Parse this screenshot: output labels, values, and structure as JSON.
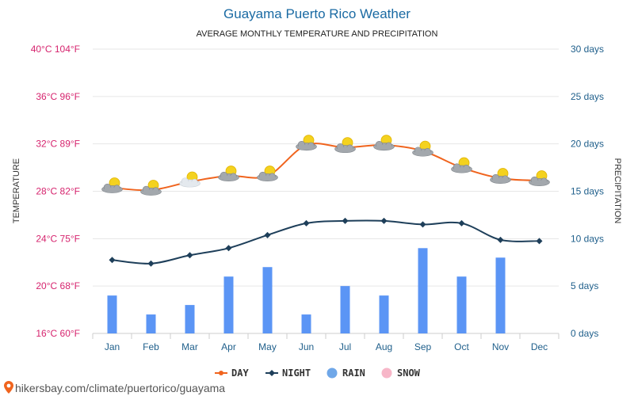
{
  "chart_data": {
    "type": "line",
    "title": "Guayama Puerto Rico Weather",
    "subtitle": "AVERAGE MONTHLY TEMPERATURE AND PRECIPITATION",
    "ylabel_left": "TEMPERATURE",
    "ylabel_right": "PRECIPITATION",
    "categories": [
      "Jan",
      "Feb",
      "Mar",
      "Apr",
      "May",
      "Jun",
      "Jul",
      "Aug",
      "Sep",
      "Oct",
      "Nov",
      "Dec"
    ],
    "left_ticks": [
      {
        "value": 16,
        "label": "16°C 60°F"
      },
      {
        "value": 20,
        "label": "20°C 68°F"
      },
      {
        "value": 24,
        "label": "24°C 75°F"
      },
      {
        "value": 28,
        "label": "28°C 82°F"
      },
      {
        "value": 32,
        "label": "32°C 89°F"
      },
      {
        "value": 36,
        "label": "36°C 96°F"
      },
      {
        "value": 40,
        "label": "40°C 104°F"
      }
    ],
    "right_ticks": [
      {
        "value": 0,
        "label": "0 days"
      },
      {
        "value": 5,
        "label": "5 days"
      },
      {
        "value": 10,
        "label": "10 days"
      },
      {
        "value": 15,
        "label": "15 days"
      },
      {
        "value": 20,
        "label": "20 days"
      },
      {
        "value": 25,
        "label": "25 days"
      },
      {
        "value": 30,
        "label": "30 days"
      }
    ],
    "ylim_left": [
      16,
      40
    ],
    "ylim_right": [
      0,
      30
    ],
    "series": [
      {
        "name": "DAY",
        "type": "line",
        "axis": "left",
        "color": "#f0641e",
        "values": [
          28.3,
          28.1,
          28.8,
          29.3,
          29.3,
          31.9,
          31.7,
          31.9,
          31.4,
          30.0,
          29.1,
          28.9
        ]
      },
      {
        "name": "NIGHT",
        "type": "line",
        "axis": "left",
        "color": "#1e3f5a",
        "values": [
          22.2,
          21.9,
          22.6,
          23.2,
          24.3,
          25.3,
          25.5,
          25.5,
          25.2,
          25.3,
          23.9,
          23.8
        ]
      },
      {
        "name": "RAIN",
        "type": "bar",
        "axis": "right",
        "color": "#5b95f5",
        "values": [
          4,
          2,
          3,
          6,
          7,
          2,
          5,
          4,
          9,
          6,
          8,
          0
        ]
      },
      {
        "name": "SNOW",
        "type": "bar",
        "axis": "right",
        "color": "#f7b6c8",
        "values": [
          0,
          0,
          0,
          0,
          0,
          0,
          0,
          0,
          0,
          0,
          0,
          0
        ]
      }
    ],
    "icons": [
      "partly-cloudy-icon",
      "partly-cloudy-icon",
      "partly-sunny-cloud-icon",
      "partly-cloudy-icon",
      "partly-cloudy-icon",
      "partly-cloudy-icon",
      "partly-cloudy-icon",
      "partly-cloudy-icon",
      "partly-cloudy-icon",
      "partly-cloudy-icon",
      "partly-cloudy-icon",
      "partly-cloudy-icon"
    ],
    "legend_position": "bottom-center",
    "grid": true
  },
  "legend": [
    {
      "label": "DAY",
      "marker": "line-dot",
      "color": "#f0641e"
    },
    {
      "label": "NIGHT",
      "marker": "line-diamond",
      "color": "#1e3f5a"
    },
    {
      "label": "RAIN",
      "marker": "circle",
      "color": "#6fa7e8"
    },
    {
      "label": "SNOW",
      "marker": "circle",
      "color": "#f7b6c8"
    }
  ],
  "footer": {
    "text": "hikersbay.com/climate/puertorico/guayama",
    "icon": "map-pin-icon",
    "icon_color": "#f0641e"
  },
  "colors": {
    "title": "#1a6aa3",
    "left_axis": "#d6246e",
    "right_axis": "#1f5f8b",
    "grid": "#e6e6e6"
  }
}
